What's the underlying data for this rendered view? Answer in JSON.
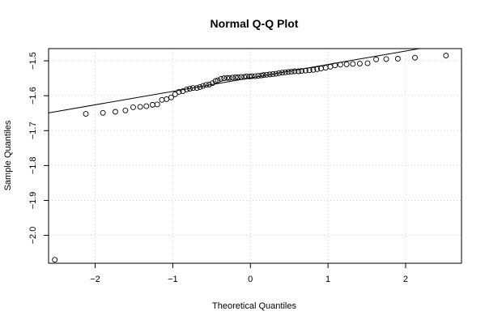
{
  "chart_data": {
    "type": "scatter",
    "title": "Normal Q-Q Plot",
    "xlabel": "Theoretical Quantiles",
    "ylabel": "Sample Quantiles",
    "xlim": [
      -2.6,
      2.72
    ],
    "ylim": [
      -2.08,
      -1.465
    ],
    "x_ticks": [
      -2,
      -1,
      0,
      1,
      2
    ],
    "y_ticks": [
      -2.0,
      -1.9,
      -1.8,
      -1.7,
      -1.6,
      -1.5
    ],
    "x_tick_labels": [
      "−2",
      "−1",
      "0",
      "1",
      "2"
    ],
    "y_tick_labels": [
      "−2.0",
      "−1.9",
      "−1.8",
      "−1.7",
      "−1.6",
      "−1.5"
    ],
    "grid": true,
    "reference_line": {
      "slope": 0.0385,
      "intercept": -1.549
    },
    "points": [
      {
        "x": -2.52,
        "y": -2.07
      },
      {
        "x": -2.12,
        "y": -1.652
      },
      {
        "x": -1.9,
        "y": -1.649
      },
      {
        "x": -1.74,
        "y": -1.646
      },
      {
        "x": -1.61,
        "y": -1.642
      },
      {
        "x": -1.51,
        "y": -1.633
      },
      {
        "x": -1.42,
        "y": -1.632
      },
      {
        "x": -1.34,
        "y": -1.63
      },
      {
        "x": -1.26,
        "y": -1.626
      },
      {
        "x": -1.2,
        "y": -1.625
      },
      {
        "x": -1.14,
        "y": -1.612
      },
      {
        "x": -1.08,
        "y": -1.61
      },
      {
        "x": -1.02,
        "y": -1.605
      },
      {
        "x": -0.97,
        "y": -1.596
      },
      {
        "x": -0.92,
        "y": -1.589
      },
      {
        "x": -0.87,
        "y": -1.587
      },
      {
        "x": -0.82,
        "y": -1.582
      },
      {
        "x": -0.78,
        "y": -1.58
      },
      {
        "x": -0.74,
        "y": -1.578
      },
      {
        "x": -0.69,
        "y": -1.578
      },
      {
        "x": -0.65,
        "y": -1.575
      },
      {
        "x": -0.61,
        "y": -1.572
      },
      {
        "x": -0.57,
        "y": -1.569
      },
      {
        "x": -0.53,
        "y": -1.568
      },
      {
        "x": -0.49,
        "y": -1.564
      },
      {
        "x": -0.45,
        "y": -1.558
      },
      {
        "x": -0.42,
        "y": -1.556
      },
      {
        "x": -0.38,
        "y": -1.552
      },
      {
        "x": -0.34,
        "y": -1.55
      },
      {
        "x": -0.3,
        "y": -1.549
      },
      {
        "x": -0.27,
        "y": -1.549
      },
      {
        "x": -0.23,
        "y": -1.548
      },
      {
        "x": -0.19,
        "y": -1.547
      },
      {
        "x": -0.16,
        "y": -1.547
      },
      {
        "x": -0.12,
        "y": -1.546
      },
      {
        "x": -0.08,
        "y": -1.546
      },
      {
        "x": -0.05,
        "y": -1.545
      },
      {
        "x": -0.01,
        "y": -1.545
      },
      {
        "x": 0.02,
        "y": -1.544
      },
      {
        "x": 0.06,
        "y": -1.544
      },
      {
        "x": 0.1,
        "y": -1.543
      },
      {
        "x": 0.14,
        "y": -1.542
      },
      {
        "x": 0.17,
        "y": -1.541
      },
      {
        "x": 0.21,
        "y": -1.54
      },
      {
        "x": 0.25,
        "y": -1.539
      },
      {
        "x": 0.29,
        "y": -1.538
      },
      {
        "x": 0.33,
        "y": -1.537
      },
      {
        "x": 0.37,
        "y": -1.535
      },
      {
        "x": 0.41,
        "y": -1.534
      },
      {
        "x": 0.45,
        "y": -1.533
      },
      {
        "x": 0.49,
        "y": -1.532
      },
      {
        "x": 0.53,
        "y": -1.531
      },
      {
        "x": 0.57,
        "y": -1.53
      },
      {
        "x": 0.62,
        "y": -1.53
      },
      {
        "x": 0.66,
        "y": -1.529
      },
      {
        "x": 0.71,
        "y": -1.528
      },
      {
        "x": 0.76,
        "y": -1.527
      },
      {
        "x": 0.81,
        "y": -1.526
      },
      {
        "x": 0.86,
        "y": -1.524
      },
      {
        "x": 0.91,
        "y": -1.522
      },
      {
        "x": 0.97,
        "y": -1.52
      },
      {
        "x": 1.03,
        "y": -1.517
      },
      {
        "x": 1.09,
        "y": -1.513
      },
      {
        "x": 1.16,
        "y": -1.511
      },
      {
        "x": 1.24,
        "y": -1.51
      },
      {
        "x": 1.32,
        "y": -1.509
      },
      {
        "x": 1.41,
        "y": -1.508
      },
      {
        "x": 1.51,
        "y": -1.507
      },
      {
        "x": 1.62,
        "y": -1.496
      },
      {
        "x": 1.75,
        "y": -1.495
      },
      {
        "x": 1.9,
        "y": -1.494
      },
      {
        "x": 2.12,
        "y": -1.491
      },
      {
        "x": 2.52,
        "y": -1.485
      }
    ]
  }
}
